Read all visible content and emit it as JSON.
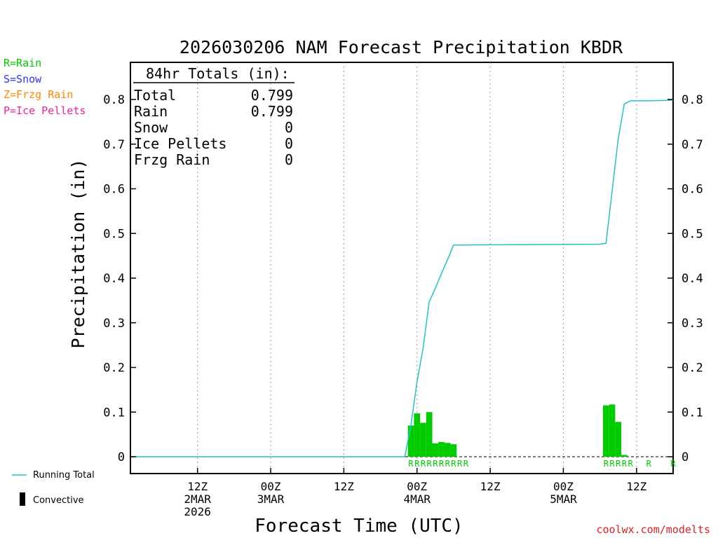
{
  "colors": {
    "rain": "#00cc00",
    "snow": "#3333ff",
    "frzg_rain": "#ff8800",
    "ice_pellets": "#ee2299",
    "running_total": "#22c4c4",
    "grid": "#999999",
    "credit": "#dd2222",
    "axis": "#000000"
  },
  "legend": {
    "rain": "R=Rain",
    "snow": "S=Snow",
    "frzg_rain": "Z=Frzg Rain",
    "ice_pellets": "P=Ice Pellets",
    "running_total": "Running Total",
    "convective": "Convective"
  },
  "totals": {
    "header": "84hr Totals (in):",
    "rows": [
      {
        "label": "Total",
        "value": "0.799"
      },
      {
        "label": "Rain",
        "value": "0.799"
      },
      {
        "label": "Snow",
        "value": "0"
      },
      {
        "label": "Ice Pellets",
        "value": "0"
      },
      {
        "label": "Frzg Rain",
        "value": "0"
      }
    ]
  },
  "credit": "coolwx.com/modelts",
  "chart_data": {
    "type": "bar",
    "title": "2026030206 NAM Forecast Precipitation KBDR",
    "xlabel": "Forecast Time (UTC)",
    "ylabel": "Precipitation (in)",
    "xlim_hours": [
      -5,
      84
    ],
    "ylim": [
      0,
      0.88
    ],
    "y_ticks": [
      0,
      0.1,
      0.2,
      0.3,
      0.4,
      0.5,
      0.6,
      0.7,
      0.8
    ],
    "y_tick_labels": [
      "0",
      "0.1",
      "0.2",
      "0.3",
      "0.4",
      "0.5",
      "0.6",
      "0.7",
      "0.8"
    ],
    "x_ticks": [
      {
        "hour": 6,
        "lines": [
          "12Z",
          "2MAR",
          "2026"
        ]
      },
      {
        "hour": 18,
        "lines": [
          "00Z",
          "3MAR"
        ]
      },
      {
        "hour": 30,
        "lines": [
          "12Z"
        ]
      },
      {
        "hour": 42,
        "lines": [
          "00Z",
          "4MAR"
        ]
      },
      {
        "hour": 54,
        "lines": [
          "12Z"
        ]
      },
      {
        "hour": 66,
        "lines": [
          "00Z",
          "5MAR"
        ]
      },
      {
        "hour": 78,
        "lines": [
          "12Z"
        ]
      }
    ],
    "grid": true,
    "series": [
      {
        "name": "Rain",
        "type": "bar",
        "bar_hours": [
          41,
          42,
          43,
          44,
          45,
          46,
          47,
          48,
          49,
          50,
          73,
          74,
          75,
          76
        ],
        "values": [
          0.07,
          0.097,
          0.076,
          0.1,
          0.03,
          0.033,
          0.031,
          0.028,
          0,
          0,
          0.115,
          0.117,
          0.078,
          0.004
        ]
      },
      {
        "name": "Running Total",
        "type": "line",
        "x": [
          -5,
          40,
          41,
          42,
          43,
          44,
          45,
          46,
          47,
          48,
          72,
          73,
          74,
          75,
          76,
          77,
          80,
          83,
          84
        ],
        "y": [
          0,
          0,
          0.07,
          0.167,
          0.243,
          0.347,
          0.377,
          0.41,
          0.441,
          0.474,
          0.476,
          0.478,
          0.595,
          0.712,
          0.79,
          0.797,
          0.797,
          0.798,
          0.799
        ]
      }
    ],
    "ptype_markers": [
      {
        "hour": 41,
        "code": "R"
      },
      {
        "hour": 42,
        "code": "R"
      },
      {
        "hour": 43,
        "code": "R"
      },
      {
        "hour": 44,
        "code": "R"
      },
      {
        "hour": 45,
        "code": "R"
      },
      {
        "hour": 46,
        "code": "R"
      },
      {
        "hour": 47,
        "code": "R"
      },
      {
        "hour": 48,
        "code": "R"
      },
      {
        "hour": 49,
        "code": "R"
      },
      {
        "hour": 50,
        "code": "R"
      },
      {
        "hour": 73,
        "code": "R"
      },
      {
        "hour": 74,
        "code": "R"
      },
      {
        "hour": 75,
        "code": "R"
      },
      {
        "hour": 76,
        "code": "R"
      },
      {
        "hour": 77,
        "code": "R"
      },
      {
        "hour": 80,
        "code": "R"
      },
      {
        "hour": 84,
        "code": "R"
      }
    ]
  }
}
